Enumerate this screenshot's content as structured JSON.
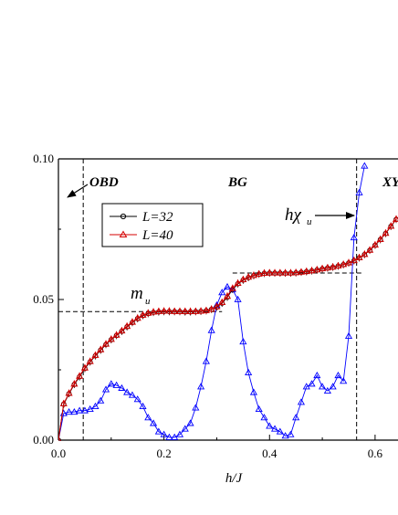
{
  "chart_data": {
    "type": "line",
    "xlabel": "h/J",
    "xlim": [
      0.0,
      0.65
    ],
    "ylim": [
      0.0,
      0.1
    ],
    "x_ticks": [
      "0.0",
      "0.2",
      "0.4",
      "0.6"
    ],
    "y_ticks": [
      "0.00",
      "0.05",
      "0.10"
    ],
    "legend_position": "upper-left",
    "region_labels": [
      "OBD",
      "BG",
      "XY"
    ],
    "annotations": {
      "m_u": "m",
      "m_u_sub": "u",
      "h_chi": "hχ",
      "h_chi_sub": "u"
    },
    "dashed_lines": {
      "vertical_x": [
        0.047,
        0.565
      ],
      "horizontal": [
        {
          "y": 0.0457,
          "x_from": 0.0,
          "x_to": 0.31
        },
        {
          "y": 0.0594,
          "x_from": 0.33,
          "x_to": 0.575
        }
      ]
    },
    "series": [
      {
        "name": "L=32",
        "marker": "circle",
        "color": "#000000",
        "x": [
          0.0,
          0.01,
          0.02,
          0.03,
          0.04,
          0.05,
          0.06,
          0.07,
          0.08,
          0.09,
          0.1,
          0.11,
          0.12,
          0.13,
          0.14,
          0.15,
          0.16,
          0.17,
          0.18,
          0.19,
          0.2,
          0.21,
          0.22,
          0.23,
          0.24,
          0.25,
          0.26,
          0.27,
          0.28,
          0.29,
          0.3,
          0.31,
          0.32,
          0.33,
          0.34,
          0.35,
          0.36,
          0.37,
          0.38,
          0.39,
          0.4,
          0.41,
          0.42,
          0.43,
          0.44,
          0.45,
          0.46,
          0.47,
          0.48,
          0.49,
          0.5,
          0.51,
          0.52,
          0.53,
          0.54,
          0.55,
          0.56,
          0.57,
          0.58,
          0.59,
          0.6,
          0.61,
          0.62,
          0.63,
          0.64
        ],
        "values": [
          0.0,
          0.0128,
          0.0165,
          0.0198,
          0.0225,
          0.0255,
          0.0278,
          0.03,
          0.032,
          0.034,
          0.0357,
          0.0372,
          0.0387,
          0.0403,
          0.0418,
          0.0432,
          0.0443,
          0.045,
          0.0454,
          0.0456,
          0.0457,
          0.0457,
          0.0457,
          0.0457,
          0.0456,
          0.0456,
          0.0457,
          0.0458,
          0.046,
          0.0465,
          0.0473,
          0.0487,
          0.0508,
          0.0536,
          0.0556,
          0.0569,
          0.0578,
          0.0585,
          0.059,
          0.0593,
          0.0594,
          0.0594,
          0.0594,
          0.0594,
          0.0594,
          0.0595,
          0.0597,
          0.0599,
          0.0602,
          0.0605,
          0.0609,
          0.0612,
          0.0615,
          0.0619,
          0.0624,
          0.063,
          0.0638,
          0.0648,
          0.066,
          0.0675,
          0.0693,
          0.0713,
          0.0735,
          0.076,
          0.0785
        ]
      },
      {
        "name": "L=40",
        "marker": "triangle",
        "color": "#d40000",
        "x": [
          0.0,
          0.01,
          0.02,
          0.03,
          0.04,
          0.05,
          0.06,
          0.07,
          0.08,
          0.09,
          0.1,
          0.11,
          0.12,
          0.13,
          0.14,
          0.15,
          0.16,
          0.17,
          0.18,
          0.19,
          0.2,
          0.21,
          0.22,
          0.23,
          0.24,
          0.25,
          0.26,
          0.27,
          0.28,
          0.29,
          0.3,
          0.31,
          0.32,
          0.33,
          0.34,
          0.35,
          0.36,
          0.37,
          0.38,
          0.39,
          0.4,
          0.41,
          0.42,
          0.43,
          0.44,
          0.45,
          0.46,
          0.47,
          0.48,
          0.49,
          0.5,
          0.51,
          0.52,
          0.53,
          0.54,
          0.55,
          0.56,
          0.57,
          0.58,
          0.59,
          0.6,
          0.61,
          0.62,
          0.63,
          0.64
        ],
        "values": [
          0.0,
          0.013,
          0.0167,
          0.02,
          0.0228,
          0.0257,
          0.028,
          0.0302,
          0.0322,
          0.0342,
          0.0359,
          0.0374,
          0.0389,
          0.0405,
          0.042,
          0.0434,
          0.0445,
          0.0452,
          0.0456,
          0.0458,
          0.0459,
          0.0459,
          0.0458,
          0.0458,
          0.0458,
          0.0458,
          0.0458,
          0.0459,
          0.0461,
          0.0466,
          0.0475,
          0.049,
          0.0512,
          0.054,
          0.0558,
          0.0571,
          0.058,
          0.0586,
          0.0591,
          0.0594,
          0.0595,
          0.0595,
          0.0595,
          0.0595,
          0.0595,
          0.0596,
          0.0598,
          0.06,
          0.0603,
          0.0606,
          0.061,
          0.0613,
          0.0616,
          0.062,
          0.0625,
          0.0631,
          0.0639,
          0.0649,
          0.0661,
          0.0676,
          0.0694,
          0.0714,
          0.0736,
          0.0761,
          0.0786
        ]
      },
      {
        "name": "hχu",
        "marker": "triangle",
        "color": "#0000ff",
        "x": [
          0.0,
          0.01,
          0.02,
          0.03,
          0.04,
          0.05,
          0.06,
          0.07,
          0.08,
          0.09,
          0.1,
          0.11,
          0.12,
          0.13,
          0.14,
          0.15,
          0.16,
          0.17,
          0.18,
          0.19,
          0.2,
          0.21,
          0.22,
          0.23,
          0.24,
          0.25,
          0.26,
          0.27,
          0.28,
          0.29,
          0.3,
          0.31,
          0.32,
          0.33,
          0.34,
          0.35,
          0.36,
          0.37,
          0.38,
          0.39,
          0.4,
          0.41,
          0.42,
          0.43,
          0.44,
          0.45,
          0.46,
          0.47,
          0.48,
          0.49,
          0.5,
          0.51,
          0.52,
          0.53,
          0.54,
          0.55,
          0.56,
          0.57,
          0.58
        ],
        "values": [
          0.0,
          0.0095,
          0.01,
          0.01,
          0.0105,
          0.0105,
          0.011,
          0.012,
          0.014,
          0.018,
          0.02,
          0.0195,
          0.0185,
          0.017,
          0.016,
          0.0145,
          0.012,
          0.008,
          0.006,
          0.003,
          0.002,
          0.001,
          0.001,
          0.002,
          0.004,
          0.006,
          0.0115,
          0.019,
          0.028,
          0.039,
          0.048,
          0.0525,
          0.0545,
          0.0535,
          0.05,
          0.035,
          0.024,
          0.017,
          0.011,
          0.008,
          0.005,
          0.004,
          0.003,
          0.0015,
          0.002,
          0.008,
          0.0135,
          0.019,
          0.02,
          0.023,
          0.019,
          0.0175,
          0.019,
          0.023,
          0.021,
          0.037,
          0.072,
          0.088,
          0.0975
        ]
      }
    ]
  }
}
